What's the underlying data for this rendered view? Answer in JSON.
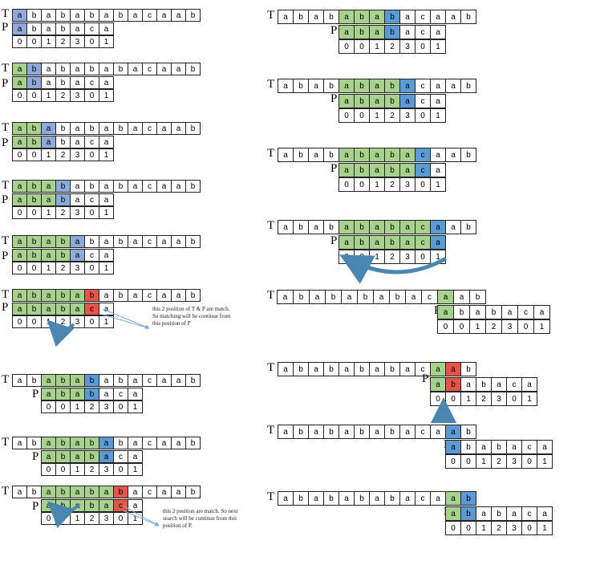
{
  "labels": {
    "text": "T",
    "pattern": "P"
  },
  "text_string": [
    "a",
    "b",
    "a",
    "b",
    "a",
    "b",
    "a",
    "b",
    "a",
    "c",
    "a",
    "a",
    "b"
  ],
  "pattern_string": [
    "a",
    "b",
    "a",
    "b",
    "a",
    "c",
    "a"
  ],
  "failure_values": [
    "0",
    "0",
    "1",
    "2",
    "3",
    "0",
    "1"
  ],
  "colors": {
    "match": "#a9d18e",
    "compare": "#5b9bd5",
    "compare_light": "#8eaadb",
    "mismatch": "#e5534b",
    "arrow": "#4a86b0"
  },
  "notes": {
    "note1": "this 2 position of T & P are match. So matching will be continue from this position of P",
    "note2": "this 2 position are match. So next search will be continue from this position of P."
  },
  "panels": [
    {
      "id": "l1",
      "T": {
        "g": [],
        "b": [
          0
        ]
      },
      "P": {
        "g": [],
        "b": [
          0
        ]
      },
      "shift": 0
    },
    {
      "id": "l2",
      "T": {
        "g": [
          0
        ],
        "b": [
          1
        ]
      },
      "P": {
        "g": [
          0
        ],
        "b": [
          1
        ]
      },
      "shift": 0
    },
    {
      "id": "l3",
      "T": {
        "g": [
          0,
          1
        ],
        "b": [
          2
        ]
      },
      "P": {
        "g": [
          0,
          1
        ],
        "b": [
          2
        ]
      },
      "shift": 0
    },
    {
      "id": "l4",
      "T": {
        "g": [
          0,
          1,
          2
        ],
        "b": [
          3
        ]
      },
      "P": {
        "g": [
          0,
          1,
          2
        ],
        "b": [
          3
        ]
      },
      "shift": 0
    },
    {
      "id": "l5",
      "T": {
        "g": [
          0,
          1,
          2,
          3
        ],
        "b": [
          4
        ]
      },
      "P": {
        "g": [
          0,
          1,
          2,
          3
        ],
        "b": [
          4
        ]
      },
      "shift": 0
    },
    {
      "id": "l6",
      "T": {
        "g": [
          0,
          1,
          2,
          3,
          4
        ],
        "r": [
          5
        ]
      },
      "P": {
        "g": [
          0,
          1,
          2,
          3,
          4
        ],
        "r": [
          5
        ]
      },
      "shift": 0
    },
    {
      "id": "l7",
      "T": {
        "g": [
          2,
          3,
          4
        ],
        "b": [
          5
        ]
      },
      "P": {
        "g": [
          0,
          1,
          2
        ],
        "b": [
          3
        ]
      },
      "shift": 2
    },
    {
      "id": "l8",
      "T": {
        "g": [
          2,
          3,
          4,
          5
        ],
        "b": [
          6
        ]
      },
      "P": {
        "g": [
          0,
          1,
          2,
          3
        ],
        "b": [
          4
        ]
      },
      "shift": 2
    },
    {
      "id": "l9",
      "T": {
        "g": [
          2,
          3,
          4,
          5,
          6
        ],
        "r": [
          7
        ]
      },
      "P": {
        "g": [
          0,
          1,
          2,
          3,
          4
        ],
        "r": [
          5
        ]
      },
      "shift": 2
    },
    {
      "id": "r1",
      "T": {
        "g": [
          4,
          5,
          6
        ],
        "b": [
          7
        ]
      },
      "P": {
        "g": [
          0,
          1,
          2
        ],
        "b": [
          3
        ]
      },
      "shift": 4
    },
    {
      "id": "r2",
      "T": {
        "g": [
          4,
          5,
          6,
          7
        ],
        "b": [
          8
        ]
      },
      "P": {
        "g": [
          0,
          1,
          2,
          3
        ],
        "b": [
          4
        ]
      },
      "shift": 4
    },
    {
      "id": "r3",
      "T": {
        "g": [
          4,
          5,
          6,
          7,
          8
        ],
        "b": [
          9
        ]
      },
      "P": {
        "g": [
          0,
          1,
          2,
          3,
          4
        ],
        "b": [
          5
        ]
      },
      "shift": 4
    },
    {
      "id": "r4",
      "T": {
        "g": [
          4,
          5,
          6,
          7,
          8,
          9
        ],
        "b": [
          10
        ]
      },
      "P": {
        "g": [
          0,
          1,
          2,
          3,
          4,
          5
        ],
        "b": [
          6
        ]
      },
      "shift": 4
    },
    {
      "id": "r5",
      "T": {
        "g": [
          10
        ]
      },
      "P": {
        "g": [
          0
        ]
      },
      "shift": 10
    },
    {
      "id": "r6",
      "T": {
        "g": [
          10
        ],
        "r": [
          11
        ]
      },
      "P": {
        "g": [
          0
        ],
        "r": [
          1
        ]
      },
      "shift": 10
    },
    {
      "id": "r7",
      "T": {
        "b": [
          11
        ]
      },
      "P": {
        "b": [
          0
        ]
      },
      "shift": 11
    },
    {
      "id": "r8",
      "T": {
        "g": [
          11
        ],
        "b": [
          12
        ]
      },
      "P": {
        "g": [
          0
        ],
        "b": [
          1
        ]
      },
      "shift": 11
    }
  ]
}
